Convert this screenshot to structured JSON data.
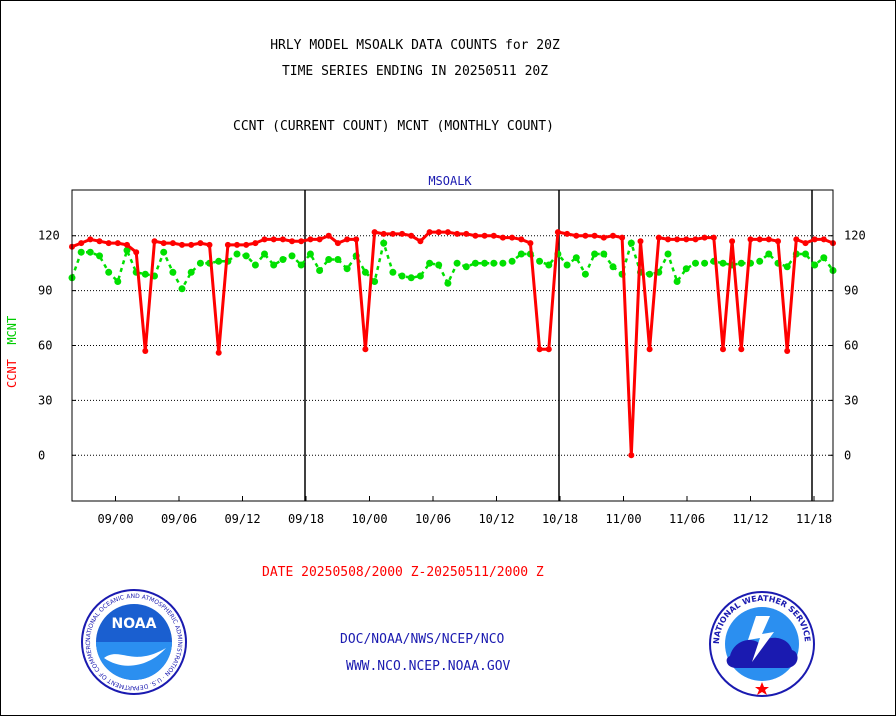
{
  "header": {
    "title_line1": "HRLY MODEL MSOALK DATA COUNTS for 20Z",
    "title_line2": "TIME SERIES ENDING IN 20250511 20Z",
    "subtitle": "CCNT (CURRENT COUNT) MCNT (MONTHLY COUNT)"
  },
  "footer": {
    "date_range": "DATE 20250508/2000 Z-20250511/2000 Z",
    "link1": "DOC/NOAA/NWS/NCEP/NCO",
    "link2": "WWW.NCO.NCEP.NOAA.GOV",
    "noaa_logo_text": "NOAA",
    "noaa_ring_text": "NATIONAL OCEANIC AND ATMOSPHERIC ADMINISTRATION · U.S. DEPARTMENT OF COMMERCE",
    "nws_ring_text": "NATIONAL WEATHER SERVICE"
  },
  "colors": {
    "ccnt": "#ff0000",
    "mcnt": "#00e000",
    "grid": "#000000",
    "axis_title": "#1a1ab0"
  },
  "chart_data": {
    "type": "line",
    "title": "MSOALK",
    "ylabel_ccnt": "CCNT",
    "ylabel_mcnt": "MCNT",
    "ylim": [
      -25,
      145
    ],
    "yticks": [
      0,
      30,
      60,
      90,
      120
    ],
    "xtick_labels": [
      "09/00",
      "09/06",
      "09/12",
      "09/18",
      "10/00",
      "10/06",
      "10/12",
      "10/18",
      "11/00",
      "11/06",
      "11/12",
      "11/18"
    ],
    "grid": "horizontal dotted lines; solid vertical day separators at 09/18, 10/18 and near 11/19",
    "series": [
      {
        "name": "CCNT",
        "values": [
          114,
          116,
          118,
          117,
          116,
          116,
          115,
          111,
          57,
          117,
          116,
          116,
          115,
          115,
          116,
          115,
          56,
          115,
          115,
          115,
          116,
          118,
          118,
          118,
          117,
          117,
          118,
          118,
          120,
          116,
          118,
          118,
          58,
          122,
          121,
          121,
          121,
          120,
          117,
          122,
          122,
          122,
          121,
          121,
          120,
          120,
          120,
          119,
          119,
          118,
          116,
          58,
          58,
          122,
          121,
          120,
          120,
          120,
          119,
          120,
          119,
          0,
          117,
          58,
          119,
          118,
          118,
          118,
          118,
          119,
          119,
          58,
          117,
          58,
          118,
          118,
          118,
          117,
          57,
          118,
          116,
          118,
          118,
          116
        ]
      },
      {
        "name": "MCNT",
        "values": [
          97,
          111,
          111,
          109,
          100,
          95,
          112,
          100,
          99,
          98,
          111,
          100,
          91,
          100,
          105,
          105,
          106,
          106,
          110,
          109,
          104,
          110,
          104,
          107,
          109,
          104,
          110,
          101,
          107,
          107,
          102,
          109,
          100,
          95,
          116,
          100,
          98,
          97,
          98,
          105,
          104,
          94,
          105,
          103,
          105,
          105,
          105,
          105,
          106,
          110,
          110,
          106,
          104,
          110,
          104,
          108,
          99,
          110,
          110,
          103,
          99,
          116,
          100,
          99,
          100,
          110,
          95,
          102,
          105,
          105,
          106,
          105,
          104,
          105,
          105,
          106,
          110,
          105,
          103,
          110,
          110,
          104,
          108,
          101
        ]
      }
    ]
  }
}
